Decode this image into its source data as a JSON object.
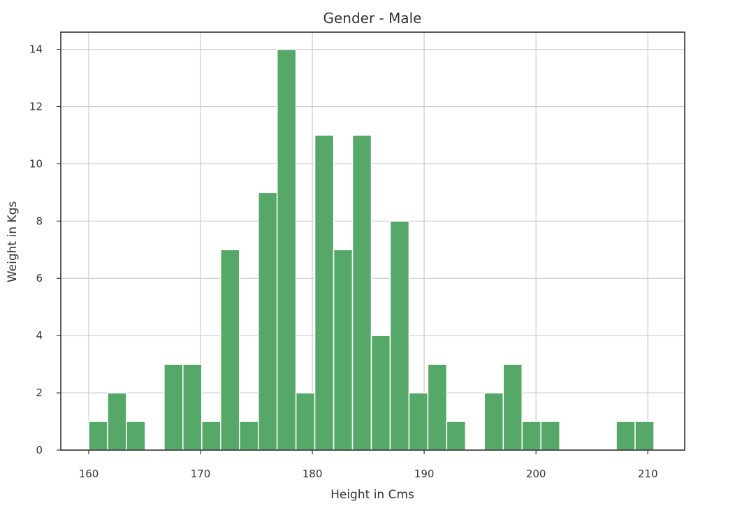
{
  "chart_data": {
    "type": "bar",
    "title": "Gender - Male",
    "xlabel": "Height in Cms",
    "ylabel": "Weight in Kgs",
    "xlim": [
      157.5,
      213.3
    ],
    "ylim": [
      0,
      14.6
    ],
    "xticks": [
      160,
      170,
      180,
      190,
      200,
      210
    ],
    "yticks": [
      0,
      2,
      4,
      6,
      8,
      10,
      12,
      14
    ],
    "grid": true,
    "bin_start": 160.0,
    "bin_width": 1.685,
    "values": [
      1,
      2,
      1,
      0,
      3,
      3,
      1,
      7,
      1,
      9,
      14,
      2,
      11,
      7,
      11,
      4,
      8,
      2,
      3,
      1,
      0,
      2,
      3,
      1,
      1,
      0,
      0,
      0,
      1,
      1
    ],
    "bar_color": "#55a868",
    "grid_color": "#cccccc",
    "spine_color": "#333333"
  }
}
